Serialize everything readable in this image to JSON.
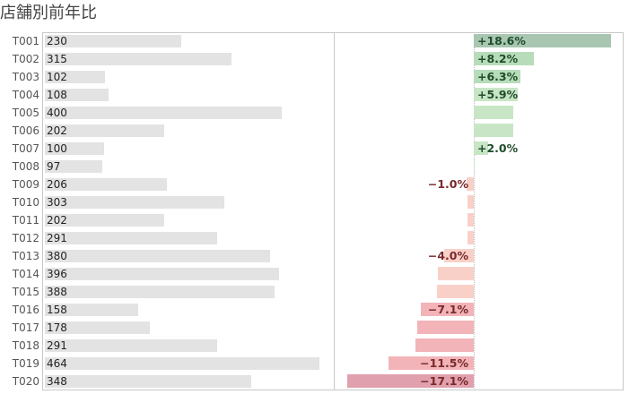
{
  "title": "店舗別前年比",
  "chart_data": {
    "type": "bar",
    "title": "店舗別前年比",
    "categories": [
      "T001",
      "T002",
      "T003",
      "T004",
      "T005",
      "T006",
      "T007",
      "T008",
      "T009",
      "T010",
      "T011",
      "T012",
      "T013",
      "T014",
      "T015",
      "T016",
      "T017",
      "T018",
      "T019",
      "T020"
    ],
    "series": [
      {
        "values": [
          230,
          315,
          102,
          108,
          400,
          202,
          100,
          97,
          206,
          303,
          202,
          291,
          380,
          396,
          388,
          158,
          178,
          291,
          464,
          348
        ]
      },
      {
        "values": [
          18.6,
          8.2,
          6.3,
          5.9,
          5.4,
          5.3,
          2.0,
          0.1,
          -1.0,
          -0.9,
          -0.9,
          -0.9,
          -4.0,
          -4.9,
          -5.0,
          -7.1,
          -7.6,
          -7.9,
          -11.5,
          -17.1
        ]
      }
    ],
    "yoy_labels": [
      "+18.6%",
      "+8.2%",
      "+6.3%",
      "+5.9%",
      "",
      "",
      "+2.0%",
      "",
      "−1.0%",
      "",
      "",
      "",
      "−4.0%",
      "",
      "",
      "−7.1%",
      "",
      "",
      "−11.5%",
      "−17.1%"
    ],
    "sales_xlim": [
      0,
      464
    ],
    "yoy_xlim": [
      -17.1,
      18.6
    ],
    "colors": {
      "sales_bar": "#e3e3e3",
      "pos_strong": "#a8c6b2",
      "pos_mid": "#b7dcb9",
      "pos_light": "#c8e6c6",
      "neg_light": "#f8d0c8",
      "neg_mid": "#f2b4b8",
      "neg_strong": "#e0a0ad",
      "pos_text": "#1f4d2a",
      "neg_text": "#7a2a2a"
    }
  }
}
